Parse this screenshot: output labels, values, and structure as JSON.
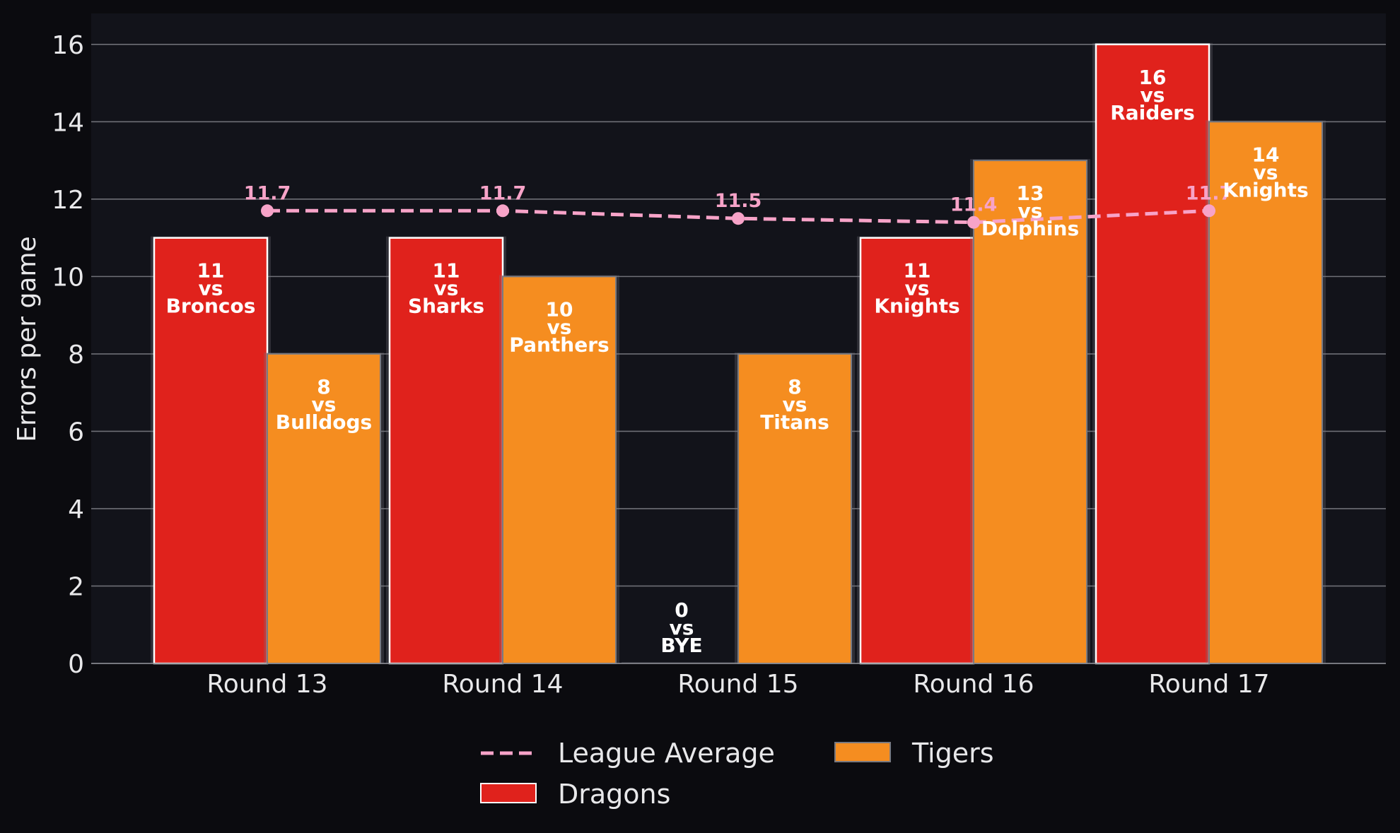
{
  "chart_data": {
    "type": "bar",
    "categories": [
      "Round 13",
      "Round 14",
      "Round 15",
      "Round 16",
      "Round 17"
    ],
    "ylabel": "Errors per game",
    "xlabel": "",
    "ylim": [
      0,
      16.8
    ],
    "yticks": [
      0,
      2,
      4,
      6,
      8,
      10,
      12,
      14,
      16
    ],
    "grid": "horizontal",
    "legend_position": "bottom-center",
    "series": [
      {
        "name": "Dragons",
        "color": "#e0221c",
        "values": [
          11,
          11,
          0,
          11,
          16
        ],
        "labels": [
          "11\nvs\nBroncos",
          "11\nvs\nSharks",
          "0\nvs\nBYE",
          "11\nvs\nKnights",
          "16\nvs\nRaiders"
        ]
      },
      {
        "name": "Tigers",
        "color": "#f58d20",
        "values": [
          8,
          10,
          8,
          13,
          14
        ],
        "labels": [
          "8\nvs\nBulldogs",
          "10\nvs\nPanthers",
          "8\nvs\nTitans",
          "13\nvs\nDolphins",
          "14\nvs\nKnights"
        ]
      }
    ],
    "line_series": {
      "name": "League Average",
      "color": "#f7a3c8",
      "style": "dashed",
      "values": [
        11.7,
        11.7,
        11.5,
        11.4,
        11.7
      ],
      "labels": [
        "11.7",
        "11.7",
        "11.5",
        "11.4",
        "11.7"
      ]
    }
  },
  "legend": [
    {
      "name": "League Average",
      "kind": "line"
    },
    {
      "name": "Tigers",
      "kind": "bar"
    },
    {
      "name": "Dragons",
      "kind": "bar"
    }
  ]
}
